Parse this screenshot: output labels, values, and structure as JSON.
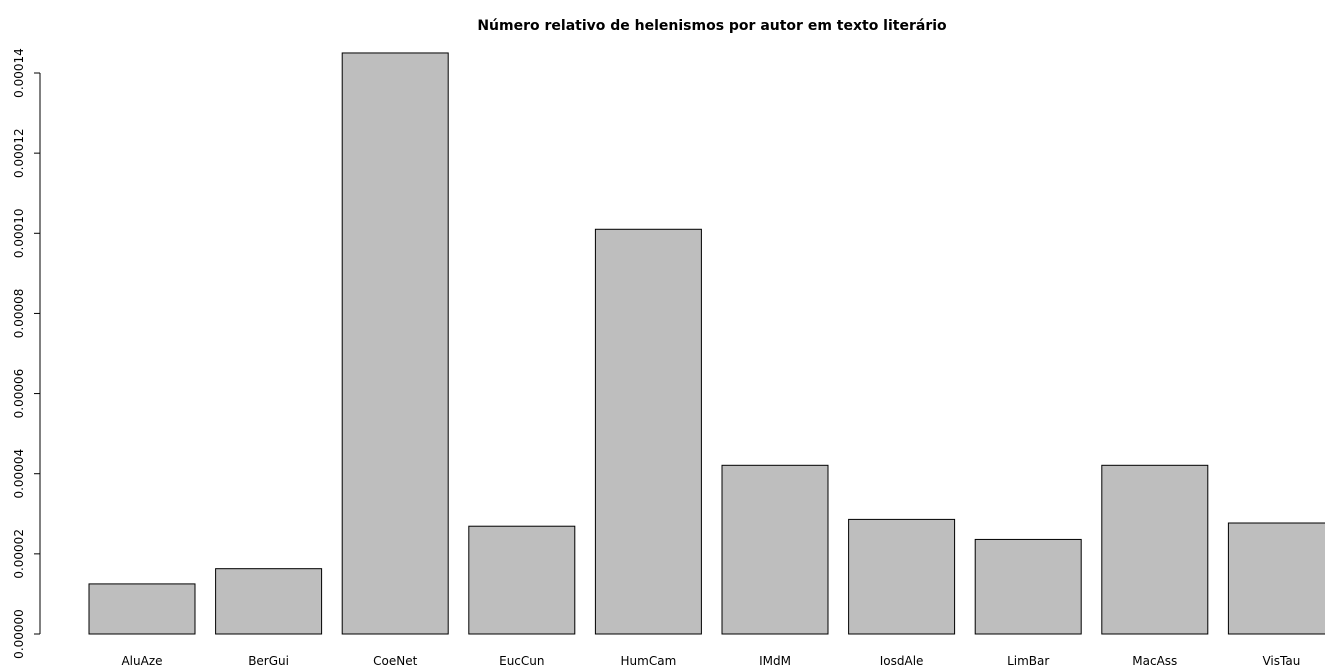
{
  "chart_data": {
    "type": "bar",
    "title": "Número relativo de helenismos por autor em texto literário",
    "xlabel": "",
    "ylabel": "",
    "categories": [
      "AluAze",
      "BerGui",
      "CoeNet",
      "EucCun",
      "HumCam",
      "IMdM",
      "IosdAle",
      "LimBar",
      "MacAss",
      "VisTau"
    ],
    "values": [
      1.25e-05,
      1.63e-05,
      0.000145,
      2.69e-05,
      0.000101,
      4.21e-05,
      2.86e-05,
      2.36e-05,
      4.21e-05,
      2.77e-05
    ],
    "yticks": [
      0,
      2e-05,
      4e-05,
      6e-05,
      8e-05,
      0.0001,
      0.00012,
      0.00014
    ],
    "ytick_labels": [
      "0.00000",
      "0.00002",
      "0.00004",
      "0.00006",
      "0.00008",
      "0.00010",
      "0.00012",
      "0.00014"
    ],
    "ylim": [
      0,
      0.00014
    ],
    "bar_color": "#bebebe",
    "bar_border_color": "#000000",
    "grid": false,
    "legend": "none"
  }
}
